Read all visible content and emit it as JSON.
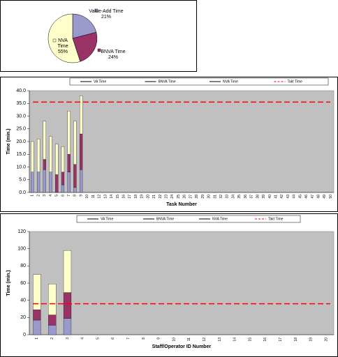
{
  "chart_data": [
    {
      "type": "pie",
      "categories": [
        "Value-Add Time",
        "BNVA Time",
        "NVA Time"
      ],
      "values": [
        21,
        24,
        55
      ],
      "value_labels": [
        "21%",
        "24%",
        "55%"
      ],
      "colors": [
        "#9999cc",
        "#993366",
        "#ffffcc"
      ]
    },
    {
      "type": "bar",
      "stacked": true,
      "x_label": "Task Number",
      "y_label": "Time (min.)",
      "categories": [
        "1",
        "2",
        "3",
        "4",
        "5",
        "6",
        "7",
        "8",
        "9",
        "10",
        "11",
        "12",
        "13",
        "14",
        "15",
        "16",
        "17",
        "18",
        "19",
        "20",
        "21",
        "22",
        "23",
        "24",
        "25",
        "26",
        "27",
        "28",
        "29",
        "30",
        "31",
        "32",
        "33",
        "34",
        "35",
        "36",
        "37",
        "38",
        "39",
        "40",
        "41",
        "42",
        "43",
        "44",
        "45",
        "46",
        "47",
        "48",
        "49",
        "50"
      ],
      "series": [
        {
          "name": "VA Time",
          "color": "#9999cc",
          "values": [
            8,
            8,
            9,
            8,
            0,
            3,
            8,
            2,
            9,
            null,
            null,
            null,
            null,
            null,
            null,
            null,
            null,
            null,
            null,
            null,
            null,
            null,
            null,
            null,
            null,
            null,
            null,
            null,
            null,
            null,
            null,
            null,
            null,
            null,
            null,
            null,
            null,
            null,
            null,
            null,
            null,
            null,
            null,
            null,
            null,
            null,
            null,
            null,
            null,
            null
          ]
        },
        {
          "name": "BNVA Time",
          "color": "#993366",
          "values": [
            0,
            0,
            4,
            0,
            7,
            5,
            7,
            9,
            14,
            null,
            null,
            null,
            null,
            null,
            null,
            null,
            null,
            null,
            null,
            null,
            null,
            null,
            null,
            null,
            null,
            null,
            null,
            null,
            null,
            null,
            null,
            null,
            null,
            null,
            null,
            null,
            null,
            null,
            null,
            null,
            null,
            null,
            null,
            null,
            null,
            null,
            null,
            null,
            null,
            null
          ]
        },
        {
          "name": "NVA Time",
          "color": "#ffffcc",
          "values": [
            12,
            13,
            15,
            14,
            12,
            10,
            17,
            17,
            15,
            null,
            null,
            null,
            null,
            null,
            null,
            null,
            null,
            null,
            null,
            null,
            null,
            null,
            null,
            null,
            null,
            null,
            null,
            null,
            null,
            null,
            null,
            null,
            null,
            null,
            null,
            null,
            null,
            null,
            null,
            null,
            null,
            null,
            null,
            null,
            null,
            null,
            null,
            null,
            null,
            null
          ]
        }
      ],
      "reference_line": {
        "name": "Takt Time",
        "color": "#ff0000",
        "value": 35.5
      },
      "ylim": [
        0,
        40
      ],
      "yticks": [
        {
          "value": 0,
          "label": "0.0"
        },
        {
          "value": 5,
          "label": "5.0"
        },
        {
          "value": 10,
          "label": "10.0"
        },
        {
          "value": 15,
          "label": "15.0"
        },
        {
          "value": 20,
          "label": "20.0"
        },
        {
          "value": 25,
          "label": "25.0"
        },
        {
          "value": 30,
          "label": "30.0"
        },
        {
          "value": 35,
          "label": "35.0"
        },
        {
          "value": 40,
          "label": "40.0"
        }
      ],
      "background": "#c0c0c0"
    },
    {
      "type": "bar",
      "stacked": true,
      "x_label": "Staff/Operator ID Number",
      "y_label": "Time (min.)",
      "categories": [
        "1",
        "2",
        "3",
        "4",
        "5",
        "6",
        "7",
        "8",
        "9",
        "10",
        "11",
        "12",
        "13",
        "14",
        "15",
        "16",
        "17",
        "18",
        "19",
        "20"
      ],
      "series": [
        {
          "name": "VA Time",
          "color": "#9999cc",
          "values": [
            17,
            11,
            19,
            null,
            null,
            null,
            null,
            null,
            null,
            null,
            null,
            null,
            null,
            null,
            null,
            null,
            null,
            null,
            null,
            null
          ]
        },
        {
          "name": "BNVA Time",
          "color": "#993366",
          "values": [
            12,
            12,
            30,
            null,
            null,
            null,
            null,
            null,
            null,
            null,
            null,
            null,
            null,
            null,
            null,
            null,
            null,
            null,
            null,
            null
          ]
        },
        {
          "name": "NVA Time",
          "color": "#ffffcc",
          "values": [
            41,
            36,
            49,
            null,
            null,
            null,
            null,
            null,
            null,
            null,
            null,
            null,
            null,
            null,
            null,
            null,
            null,
            null,
            null,
            null
          ]
        }
      ],
      "reference_line": {
        "name": "Takt Time",
        "color": "#ff0000",
        "value": 36
      },
      "ylim": [
        0,
        120
      ],
      "yticks": [
        0,
        20,
        40,
        60,
        80,
        100,
        120
      ],
      "background": "#c0c0c0"
    }
  ]
}
